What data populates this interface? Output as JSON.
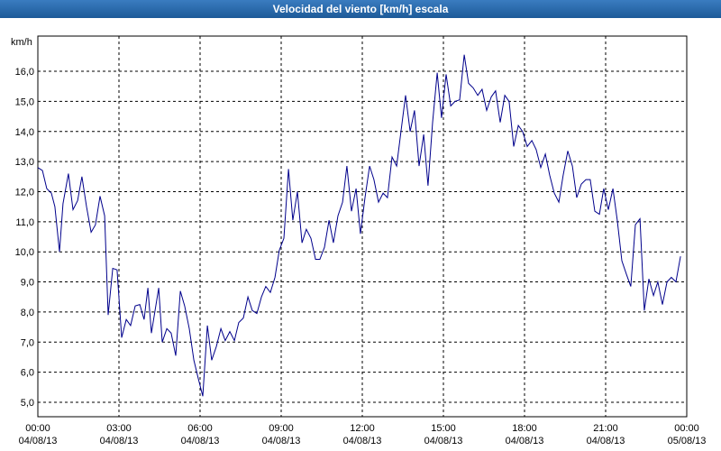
{
  "chart_data": {
    "type": "line",
    "title": "Velocidad del viento [km/h] escala",
    "y_label": "km/h",
    "xlim": [
      0,
      24
    ],
    "ylim": [
      4.52,
      17.17
    ],
    "grid": true,
    "color": "#00008b",
    "xticks": [
      {
        "value": 0,
        "label": "00:00\n04/08/13"
      },
      {
        "value": 3,
        "label": "03:00\n04/08/13"
      },
      {
        "value": 6,
        "label": "06:00\n04/08/13"
      },
      {
        "value": 9,
        "label": "09:00\n04/08/13"
      },
      {
        "value": 12,
        "label": "12:00\n04/08/13"
      },
      {
        "value": 15,
        "label": "15:00\n04/08/13"
      },
      {
        "value": 18,
        "label": "18:00\n04/08/13"
      },
      {
        "value": 21,
        "label": "21:00\n04/08/13"
      },
      {
        "value": 24,
        "label": "00:00\n05/08/13"
      }
    ],
    "yticks": [
      {
        "value": 5,
        "label": "5,0"
      },
      {
        "value": 6,
        "label": "6,0"
      },
      {
        "value": 7,
        "label": "7,0"
      },
      {
        "value": 8,
        "label": "8,0"
      },
      {
        "value": 9,
        "label": "9,0"
      },
      {
        "value": 10,
        "label": "10,0"
      },
      {
        "value": 11,
        "label": "11,0"
      },
      {
        "value": 12,
        "label": "12,0"
      },
      {
        "value": 13,
        "label": "13,0"
      },
      {
        "value": 14,
        "label": "14,0"
      },
      {
        "value": 15,
        "label": "15,0"
      },
      {
        "value": 16,
        "label": "16,0"
      }
    ],
    "x": [
      0,
      0.17,
      0.33,
      0.5,
      0.63,
      0.8,
      0.93,
      1.13,
      1.3,
      1.47,
      1.63,
      1.8,
      1.97,
      2.13,
      2.3,
      2.47,
      2.6,
      2.77,
      2.93,
      3.1,
      3.27,
      3.43,
      3.6,
      3.77,
      3.93,
      4.07,
      4.2,
      4.47,
      4.6,
      4.77,
      4.93,
      5.1,
      5.27,
      5.43,
      5.6,
      5.77,
      5.93,
      6.1,
      6.27,
      6.43,
      6.6,
      6.77,
      6.93,
      7.1,
      7.27,
      7.43,
      7.6,
      7.77,
      7.93,
      8.1,
      8.27,
      8.43,
      8.6,
      8.77,
      8.93,
      9.1,
      9.27,
      9.43,
      9.6,
      9.77,
      9.93,
      10.1,
      10.27,
      10.43,
      10.6,
      10.77,
      10.93,
      11.1,
      11.27,
      11.43,
      11.6,
      11.77,
      11.93,
      12.1,
      12.27,
      12.43,
      12.6,
      12.77,
      12.93,
      13.1,
      13.27,
      13.43,
      13.6,
      13.77,
      13.93,
      14.1,
      14.27,
      14.43,
      14.6,
      14.77,
      14.93,
      15.1,
      15.27,
      15.43,
      15.6,
      15.77,
      15.93,
      16.1,
      16.27,
      16.43,
      16.6,
      16.77,
      16.93,
      17.1,
      17.27,
      17.43,
      17.6,
      17.77,
      17.93,
      18.1,
      18.27,
      18.43,
      18.6,
      18.77,
      18.93,
      19.1,
      19.27,
      19.43,
      19.6,
      19.77,
      19.93,
      20.1,
      20.27,
      20.43,
      20.6,
      20.77,
      20.93,
      21.1,
      21.27,
      21.43,
      21.6,
      21.77,
      21.93,
      22.1,
      22.27,
      22.43,
      22.6,
      22.77,
      22.93,
      23.1,
      23.27,
      23.43,
      23.6,
      23.77
    ],
    "values": [
      12.8,
      12.7,
      12.1,
      11.95,
      11.5,
      10.0,
      11.6,
      12.6,
      11.4,
      11.7,
      12.5,
      11.5,
      10.65,
      10.9,
      11.85,
      11.2,
      7.9,
      9.45,
      9.4,
      7.15,
      7.75,
      7.55,
      8.2,
      8.25,
      7.75,
      8.8,
      7.3,
      8.8,
      7.0,
      7.45,
      7.3,
      6.55,
      8.7,
      8.2,
      7.45,
      6.4,
      5.8,
      5.2,
      7.55,
      6.4,
      6.85,
      7.45,
      7.05,
      7.35,
      7.05,
      7.65,
      7.8,
      8.5,
      8.05,
      7.95,
      8.5,
      8.85,
      8.65,
      9.15,
      10.05,
      10.45,
      12.75,
      11.05,
      12.0,
      10.3,
      10.75,
      10.45,
      9.75,
      9.75,
      10.15,
      11.05,
      10.3,
      11.2,
      11.65,
      12.85,
      11.35,
      12.1,
      10.6,
      11.8,
      12.85,
      12.4,
      11.65,
      11.95,
      11.8,
      13.15,
      12.85,
      14.0,
      15.2,
      14.0,
      14.7,
      12.85,
      13.9,
      12.2,
      14.3,
      15.95,
      14.45,
      15.9,
      14.85,
      15.0,
      15.05,
      16.55,
      15.6,
      15.45,
      15.2,
      15.4,
      14.7,
      15.15,
      15.35,
      14.3,
      15.2,
      15.0,
      13.5,
      14.2,
      14.0,
      13.5,
      13.7,
      13.4,
      12.8,
      13.25,
      12.55,
      11.95,
      11.65,
      12.55,
      13.35,
      12.85,
      11.8,
      12.25,
      12.4,
      12.4,
      11.35,
      11.25,
      12.1,
      11.4,
      12.1,
      11.05,
      9.7,
      9.25,
      8.85,
      10.9,
      11.1,
      8.05,
      9.1,
      8.55,
      9.0,
      8.25,
      9.0,
      9.15,
      9.0,
      9.85
    ]
  }
}
